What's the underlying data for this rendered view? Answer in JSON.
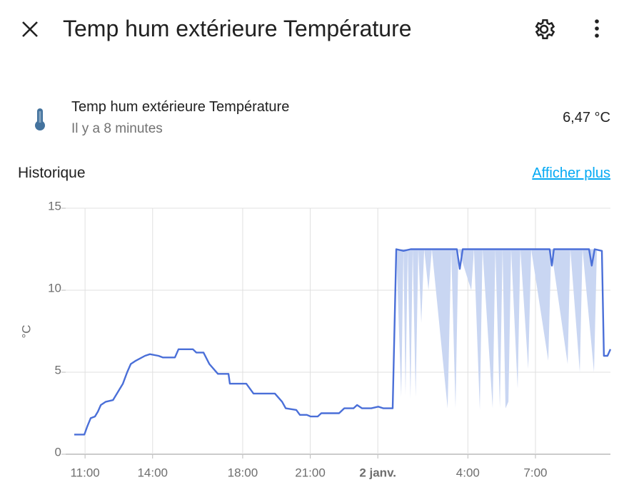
{
  "header": {
    "title": "Temp hum extérieure Température"
  },
  "entity": {
    "name": "Temp hum extérieure Température",
    "last_changed": "Il y a 8 minutes",
    "state": "6,47 °C"
  },
  "history": {
    "title": "Historique",
    "more_link": "Afficher plus"
  },
  "chart_data": {
    "type": "line",
    "y_label": "°C",
    "xlim": [
      10.14,
      34.33
    ],
    "ylim": [
      0,
      15
    ],
    "yticks": [
      0,
      5,
      10,
      15
    ],
    "xticks": [
      {
        "value": 11,
        "label": "11:00"
      },
      {
        "value": 14,
        "label": "14:00"
      },
      {
        "value": 18,
        "label": "18:00"
      },
      {
        "value": 21,
        "label": "21:00"
      },
      {
        "value": 24,
        "label": "2 janv."
      },
      {
        "value": 28,
        "label": "4:00"
      },
      {
        "value": 31,
        "label": "7:00"
      }
    ],
    "grid": true,
    "series": [
      {
        "name": "Temp hum extérieure Température",
        "color": "#4a6fd8",
        "x": [
          10.52,
          10.97,
          11.1,
          11.25,
          11.44,
          11.57,
          11.7,
          11.92,
          12.24,
          12.46,
          12.68,
          12.87,
          13.03,
          13.25,
          13.66,
          13.88,
          14.26,
          14.45,
          14.99,
          15.15,
          15.79,
          15.94,
          16.26,
          16.52,
          16.9,
          17.37,
          17.43,
          18.16,
          18.48,
          19.43,
          19.75,
          19.91,
          20.38,
          20.54,
          20.85,
          21.02,
          21.33,
          21.49,
          22.28,
          22.51,
          22.92,
          23.08,
          23.3,
          23.71,
          24.02,
          24.25,
          24.66,
          24.82,
          25.14,
          25.46,
          27.51,
          27.64,
          27.77,
          31.63,
          31.73,
          31.82,
          33.38,
          33.5,
          33.63,
          33.95,
          34.04,
          34.2,
          34.33
        ],
        "values": [
          1.2,
          1.2,
          1.7,
          2.2,
          2.3,
          2.6,
          3.0,
          3.2,
          3.3,
          3.8,
          4.3,
          5.0,
          5.5,
          5.7,
          6.0,
          6.1,
          6.0,
          5.9,
          5.9,
          6.4,
          6.4,
          6.2,
          6.2,
          5.5,
          4.9,
          4.9,
          4.3,
          4.3,
          3.7,
          3.7,
          3.2,
          2.8,
          2.7,
          2.4,
          2.4,
          2.3,
          2.3,
          2.5,
          2.5,
          2.8,
          2.8,
          3.0,
          2.8,
          2.8,
          2.9,
          2.8,
          2.8,
          12.5,
          12.4,
          12.5,
          12.5,
          11.3,
          12.5,
          12.5,
          11.5,
          12.5,
          12.5,
          11.5,
          12.5,
          12.4,
          6.0,
          6.0,
          6.4
        ]
      },
      {
        "type": "band",
        "color": "#c9d6f2",
        "x": [
          24.82,
          25.04,
          25.14,
          25.23,
          25.33,
          25.45,
          25.55,
          25.68,
          25.8,
          25.93,
          26.06,
          26.25,
          26.4,
          27.1,
          27.26,
          27.45,
          27.58,
          28.15,
          28.27,
          28.53,
          28.65,
          29.1,
          29.22,
          29.42,
          29.54,
          29.67,
          29.8,
          29.92,
          30.21,
          30.33,
          30.68,
          30.81,
          31.57,
          31.7,
          32.43,
          32.55,
          32.97,
          33.09,
          33.6,
          33.73
        ],
        "values": [
          12.5,
          3.5,
          12.5,
          3.6,
          12.5,
          3.4,
          12.5,
          3.5,
          12.5,
          8,
          12.5,
          10,
          12.5,
          2.8,
          12.5,
          2.8,
          12.5,
          10,
          12.5,
          2.7,
          12.5,
          2.8,
          12.5,
          2.8,
          12.5,
          2.8,
          3.2,
          12.5,
          4,
          12.5,
          5.2,
          12.5,
          5.7,
          12.5,
          5.5,
          12.5,
          5,
          12.5,
          5,
          12.5
        ]
      }
    ]
  }
}
